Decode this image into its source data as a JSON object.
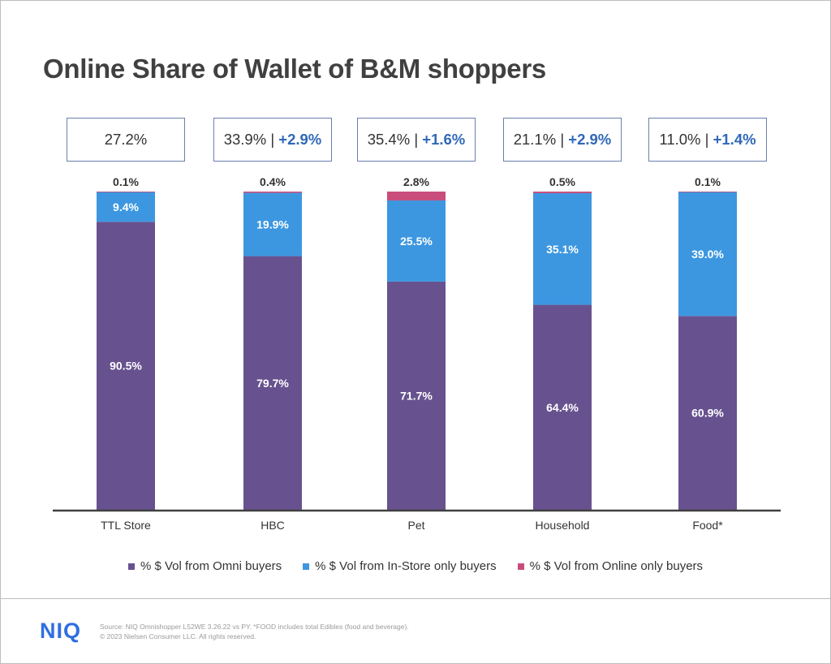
{
  "title": "Online Share of Wallet of B&M shoppers",
  "summary_boxes": [
    {
      "value": "27.2%",
      "sep": "",
      "delta": ""
    },
    {
      "value": "33.9%",
      "sep": " | ",
      "delta": "+2.9%"
    },
    {
      "value": "35.4%",
      "sep": " | ",
      "delta": "+1.6%"
    },
    {
      "value": "21.1%",
      "sep": " | ",
      "delta": "+2.9%"
    },
    {
      "value": "11.0%",
      "sep": " | ",
      "delta": "+1.4%"
    }
  ],
  "chart_data": {
    "type": "bar",
    "stacked": true,
    "categories": [
      "TTL Store",
      "HBC",
      "Pet",
      "Household",
      "Food*"
    ],
    "series": [
      {
        "name": "% $ Vol from Omni buyers",
        "color": "#67528f",
        "values": [
          90.5,
          79.7,
          71.7,
          64.4,
          60.9
        ],
        "labels": [
          "90.5%",
          "79.7%",
          "71.7%",
          "64.4%",
          "60.9%"
        ]
      },
      {
        "name": "% $ Vol from In-Store only buyers",
        "color": "#3d97e0",
        "values": [
          9.4,
          19.9,
          25.5,
          35.1,
          39.0
        ],
        "labels": [
          "9.4%",
          "19.9%",
          "25.5%",
          "35.1%",
          "39.0%"
        ]
      },
      {
        "name": "% $ Vol from Online only buyers",
        "color": "#c94d7c",
        "values": [
          0.1,
          0.4,
          2.8,
          0.5,
          0.1
        ],
        "labels": [
          "0.1%",
          "0.4%",
          "2.8%",
          "0.5%",
          "0.1%"
        ]
      }
    ],
    "ylim": [
      0,
      100
    ],
    "legend": "bottom"
  },
  "footer": {
    "logo": "NIQ",
    "source_line1": "Source: NIQ Omnishopper L52WE 3.26.22 vs PY. *FOOD includes total Edibles (food and beverage).",
    "source_line2": "© 2023 Nielsen Consumer LLC. All rights reserved."
  }
}
